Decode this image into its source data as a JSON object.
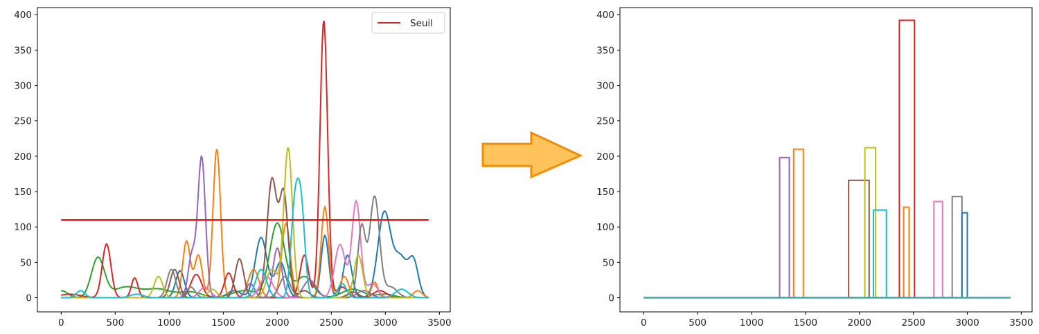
{
  "chart_data": [
    {
      "type": "line",
      "title": "",
      "xlabel": "",
      "ylabel": "",
      "xlim": [
        -220,
        3600
      ],
      "ylim": [
        -20,
        410
      ],
      "xticks": [
        0,
        500,
        1000,
        1500,
        2000,
        2500,
        3000,
        3500
      ],
      "yticks": [
        0,
        50,
        100,
        150,
        200,
        250,
        300,
        350,
        400
      ],
      "legend": {
        "position": "top-right",
        "entries": [
          {
            "label": "Seuil",
            "color": "#d62728"
          }
        ]
      },
      "threshold": {
        "name": "Seuil",
        "value": 110,
        "x": [
          0,
          3400
        ],
        "color": "#ff0000"
      },
      "series": [
        {
          "color": "#1f77b4",
          "peaks": [
            [
              1100,
              38,
              40
            ],
            [
              1600,
              10,
              60
            ],
            [
              1850,
              85,
              55
            ],
            [
              2030,
              50,
              50
            ],
            [
              2440,
              88,
              35
            ],
            [
              2650,
              60,
              40
            ],
            [
              2990,
              120,
              60
            ],
            [
              3140,
              55,
              60
            ],
            [
              3260,
              50,
              45
            ]
          ]
        },
        {
          "color": "#ff7f0e",
          "peaks": [
            [
              1160,
              80,
              35
            ],
            [
              1270,
              60,
              35
            ],
            [
              1440,
              210,
              35
            ],
            [
              1780,
              40,
              50
            ],
            [
              2080,
              105,
              40
            ],
            [
              2440,
              128,
              35
            ],
            [
              2620,
              30,
              40
            ],
            [
              2900,
              22,
              30
            ],
            [
              3300,
              10,
              40
            ]
          ]
        },
        {
          "color": "#2ca02c",
          "peaks": [
            [
              0,
              10,
              60
            ],
            [
              340,
              56,
              60
            ],
            [
              600,
              15,
              120
            ],
            [
              900,
              12,
              120
            ],
            [
              1200,
              8,
              100
            ],
            [
              1700,
              10,
              120
            ],
            [
              2000,
              105,
              70
            ],
            [
              2250,
              30,
              80
            ],
            [
              2700,
              12,
              100
            ],
            [
              3000,
              5,
              80
            ]
          ]
        },
        {
          "color": "#d62728",
          "peaks": [
            [
              80,
              5,
              100
            ],
            [
              420,
              76,
              40
            ],
            [
              680,
              28,
              30
            ],
            [
              1250,
              33,
              50
            ],
            [
              1550,
              35,
              40
            ],
            [
              2250,
              60,
              40
            ],
            [
              2430,
              392,
              35
            ],
            [
              2600,
              15,
              50
            ],
            [
              2950,
              10,
              60
            ]
          ]
        },
        {
          "color": "#9467bd",
          "peaks": [
            [
              1210,
              60,
              35
            ],
            [
              1300,
              198,
              35
            ],
            [
              1750,
              20,
              40
            ],
            [
              2000,
              70,
              40
            ],
            [
              2300,
              25,
              60
            ],
            [
              2800,
              10,
              60
            ]
          ]
        },
        {
          "color": "#8c564b",
          "peaks": [
            [
              1050,
              40,
              40
            ],
            [
              1650,
              55,
              40
            ],
            [
              1950,
              166,
              45
            ],
            [
              2060,
              145,
              40
            ],
            [
              2250,
              10,
              50
            ],
            [
              2700,
              8,
              50
            ]
          ]
        },
        {
          "color": "#e377c2",
          "peaks": [
            [
              1330,
              15,
              50
            ],
            [
              1900,
              30,
              60
            ],
            [
              2580,
              75,
              50
            ],
            [
              2730,
              136,
              40
            ],
            [
              2880,
              20,
              50
            ]
          ]
        },
        {
          "color": "#7f7f7f",
          "peaks": [
            [
              1020,
              40,
              40
            ],
            [
              1200,
              15,
              40
            ],
            [
              2070,
              30,
              50
            ],
            [
              2780,
              100,
              35
            ],
            [
              2900,
              143,
              45
            ],
            [
              3050,
              15,
              60
            ]
          ]
        },
        {
          "color": "#bcbd22",
          "peaks": [
            [
              900,
              30,
              40
            ],
            [
              1400,
              12,
              40
            ],
            [
              1950,
              40,
              50
            ],
            [
              2100,
              212,
              40
            ],
            [
              2750,
              60,
              40
            ]
          ]
        },
        {
          "color": "#17becf",
          "peaks": [
            [
              180,
              10,
              40
            ],
            [
              700,
              5,
              60
            ],
            [
              1850,
              40,
              50
            ],
            [
              2160,
              120,
              35
            ],
            [
              2220,
              124,
              35
            ],
            [
              2600,
              20,
              40
            ],
            [
              3150,
              12,
              60
            ]
          ]
        }
      ]
    },
    {
      "type": "line",
      "title": "",
      "xlabel": "",
      "ylabel": "",
      "xlim": [
        -220,
        3600
      ],
      "ylim": [
        -20,
        410
      ],
      "xticks": [
        0,
        500,
        1000,
        1500,
        2000,
        2500,
        3000,
        3500
      ],
      "yticks": [
        0,
        50,
        100,
        150,
        200,
        250,
        300,
        350,
        400
      ],
      "baseline_x": [
        0,
        3400
      ],
      "series": [
        {
          "color": "#9467bd",
          "x0": 1260,
          "x1": 1350,
          "value": 198
        },
        {
          "color": "#ff7f0e",
          "x0": 1390,
          "x1": 1480,
          "value": 210
        },
        {
          "color": "#8c564b",
          "x0": 1900,
          "x1": 2090,
          "value": 166
        },
        {
          "color": "#bcbd22",
          "x0": 2050,
          "x1": 2150,
          "value": 212
        },
        {
          "color": "#17becf",
          "x0": 2130,
          "x1": 2250,
          "value": 124
        },
        {
          "color": "#d62728",
          "x0": 2370,
          "x1": 2510,
          "value": 392
        },
        {
          "color": "#ff7f0e",
          "x0": 2410,
          "x1": 2460,
          "value": 128
        },
        {
          "color": "#e377c2",
          "x0": 2690,
          "x1": 2770,
          "value": 136
        },
        {
          "color": "#7f7f7f",
          "x0": 2860,
          "x1": 2950,
          "value": 143
        },
        {
          "color": "#1f77b4",
          "x0": 2950,
          "x1": 3000,
          "value": 120
        }
      ]
    }
  ],
  "arrow": {
    "fill": "#ffc35c",
    "stroke": "#f28c00"
  }
}
